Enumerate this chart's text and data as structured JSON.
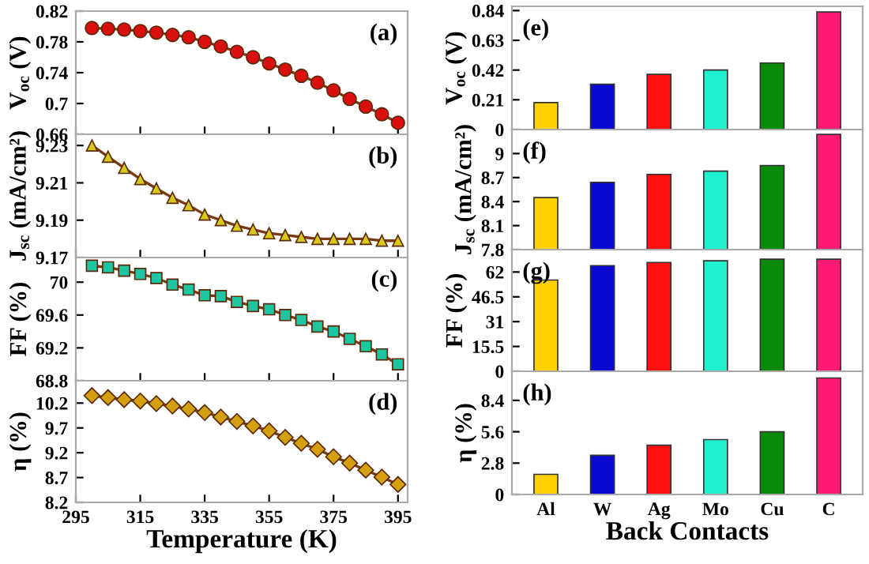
{
  "chart_data": [
    {
      "type": "line",
      "ylabel": "V$_{oc}$ (V)",
      "annotations": [
        "(a)"
      ],
      "marker": "circle",
      "tick_labels": "y",
      "xlim": [
        295,
        398
      ],
      "xticks": [
        295,
        315,
        335,
        355,
        375,
        395
      ],
      "ylim": [
        0.66,
        0.82
      ],
      "yticks": [
        0.66,
        0.7,
        0.74,
        0.78,
        0.82
      ],
      "x": [
        300,
        305,
        310,
        315,
        320,
        325,
        330,
        335,
        340,
        345,
        350,
        355,
        360,
        365,
        370,
        375,
        380,
        385,
        390,
        395
      ],
      "series": [
        {
          "color": "#d81010",
          "values": [
            0.798,
            0.797,
            0.796,
            0.794,
            0.792,
            0.789,
            0.786,
            0.78,
            0.774,
            0.767,
            0.76,
            0.752,
            0.744,
            0.736,
            0.727,
            0.717,
            0.706,
            0.696,
            0.686,
            0.675
          ]
        }
      ]
    },
    {
      "type": "line",
      "ylabel": "J$_{sc}$ (mA/cm²)",
      "annotations": [
        "(b)"
      ],
      "marker": "triangle",
      "tick_labels": "y",
      "xlim": [
        295,
        398
      ],
      "xticks": [
        295,
        315,
        335,
        355,
        375,
        395
      ],
      "ylim": [
        9.17,
        9.236
      ],
      "yticks": [
        9.17,
        9.19,
        9.21,
        9.23
      ],
      "x": [
        300,
        305,
        310,
        315,
        320,
        325,
        330,
        335,
        340,
        345,
        350,
        355,
        360,
        365,
        370,
        375,
        380,
        385,
        390,
        395
      ],
      "series": [
        {
          "color": "#d8c81a",
          "values": [
            9.23,
            9.224,
            9.218,
            9.212,
            9.207,
            9.202,
            9.198,
            9.193,
            9.19,
            9.187,
            9.185,
            9.183,
            9.182,
            9.181,
            9.18,
            9.18,
            9.18,
            9.18,
            9.179,
            9.179
          ]
        }
      ]
    },
    {
      "type": "line",
      "ylabel": "FF (%)",
      "annotations": [
        "(c)"
      ],
      "marker": "square",
      "tick_labels": "y",
      "xlim": [
        295,
        398
      ],
      "xticks": [
        295,
        315,
        335,
        355,
        375,
        395
      ],
      "ylim": [
        68.8,
        70.3
      ],
      "yticks": [
        68.8,
        69.2,
        69.6,
        70
      ],
      "x": [
        300,
        305,
        310,
        315,
        320,
        325,
        330,
        335,
        340,
        345,
        350,
        355,
        360,
        365,
        370,
        375,
        380,
        385,
        390,
        395
      ],
      "series": [
        {
          "color": "#1fc4a0",
          "values": [
            70.2,
            70.18,
            70.14,
            70.1,
            70.05,
            69.97,
            69.91,
            69.84,
            69.83,
            69.76,
            69.71,
            69.67,
            69.6,
            69.54,
            69.46,
            69.4,
            69.31,
            69.22,
            69.12,
            69.0
          ]
        }
      ]
    },
    {
      "type": "line",
      "ylabel": "η (%)",
      "xlabel": "Temperature (K)",
      "annotations": [
        "(d)"
      ],
      "marker": "diamond",
      "xlim": [
        295,
        398
      ],
      "xticks": [
        295,
        315,
        335,
        355,
        375,
        395
      ],
      "ylim": [
        8.2,
        10.65
      ],
      "yticks": [
        8.2,
        8.7,
        9.2,
        9.7,
        10.2
      ],
      "x": [
        300,
        305,
        310,
        315,
        320,
        325,
        330,
        335,
        340,
        345,
        350,
        355,
        360,
        365,
        370,
        375,
        380,
        385,
        390,
        395
      ],
      "series": [
        {
          "color": "#d4a010",
          "values": [
            10.35,
            10.31,
            10.27,
            10.24,
            10.19,
            10.14,
            10.08,
            10.01,
            9.92,
            9.83,
            9.74,
            9.64,
            9.51,
            9.39,
            9.27,
            9.12,
            8.99,
            8.85,
            8.71,
            8.56
          ]
        }
      ]
    },
    {
      "type": "bar",
      "ylabel": "V$_{oc}$ (V)",
      "annotations": [
        "(e)"
      ],
      "tick_labels": "y",
      "categories": [
        null,
        null,
        null,
        null,
        null,
        null
      ],
      "ylim": [
        0,
        0.87
      ],
      "yticks": [
        0,
        0.21,
        0.42,
        0.63,
        0.84
      ],
      "colors": [
        "#ffd000",
        "#0a0ad0",
        "#ff1010",
        "#20f0d0",
        "#0a8a0a",
        "#ff1a75"
      ],
      "values": [
        0.19,
        0.32,
        0.39,
        0.42,
        0.47,
        0.83
      ]
    },
    {
      "type": "bar",
      "ylabel": "J$_{sc}$ (mA/cm²)",
      "annotations": [
        "(f)"
      ],
      "tick_labels": "y",
      "categories": [
        null,
        null,
        null,
        null,
        null,
        null
      ],
      "ylim": [
        7.8,
        9.3
      ],
      "yticks": [
        7.8,
        8.1,
        8.4,
        8.7,
        9
      ],
      "colors": [
        "#ffd000",
        "#0a0ad0",
        "#ff1010",
        "#20f0d0",
        "#0a8a0a",
        "#ff1a75"
      ],
      "values": [
        8.45,
        8.64,
        8.74,
        8.78,
        8.85,
        9.24
      ]
    },
    {
      "type": "bar",
      "ylabel": "FF (%)",
      "annotations": [
        "(g)"
      ],
      "tick_labels": "y",
      "categories": [
        null,
        null,
        null,
        null,
        null,
        null
      ],
      "ylim": [
        0,
        76
      ],
      "yticks": [
        0,
        15.5,
        31,
        46.5,
        62
      ],
      "colors": [
        "#ffd000",
        "#0a0ad0",
        "#ff1010",
        "#20f0d0",
        "#0a8a0a",
        "#ff1a75"
      ],
      "values": [
        57,
        66,
        68,
        69,
        70,
        70
      ]
    },
    {
      "type": "bar",
      "ylabel": "η (%)",
      "xlabel": "Back Contacts",
      "annotations": [
        "(h)"
      ],
      "categories": [
        "Al",
        "W",
        "Ag",
        "Mo",
        "Cu",
        "C"
      ],
      "ylim": [
        0,
        11
      ],
      "yticks": [
        0,
        2.8,
        5.6,
        8.4
      ],
      "colors": [
        "#ffd000",
        "#0a0ad0",
        "#ff1010",
        "#20f0d0",
        "#0a8a0a",
        "#ff1a75"
      ],
      "values": [
        1.8,
        3.5,
        4.4,
        4.9,
        5.6,
        10.4
      ]
    }
  ]
}
